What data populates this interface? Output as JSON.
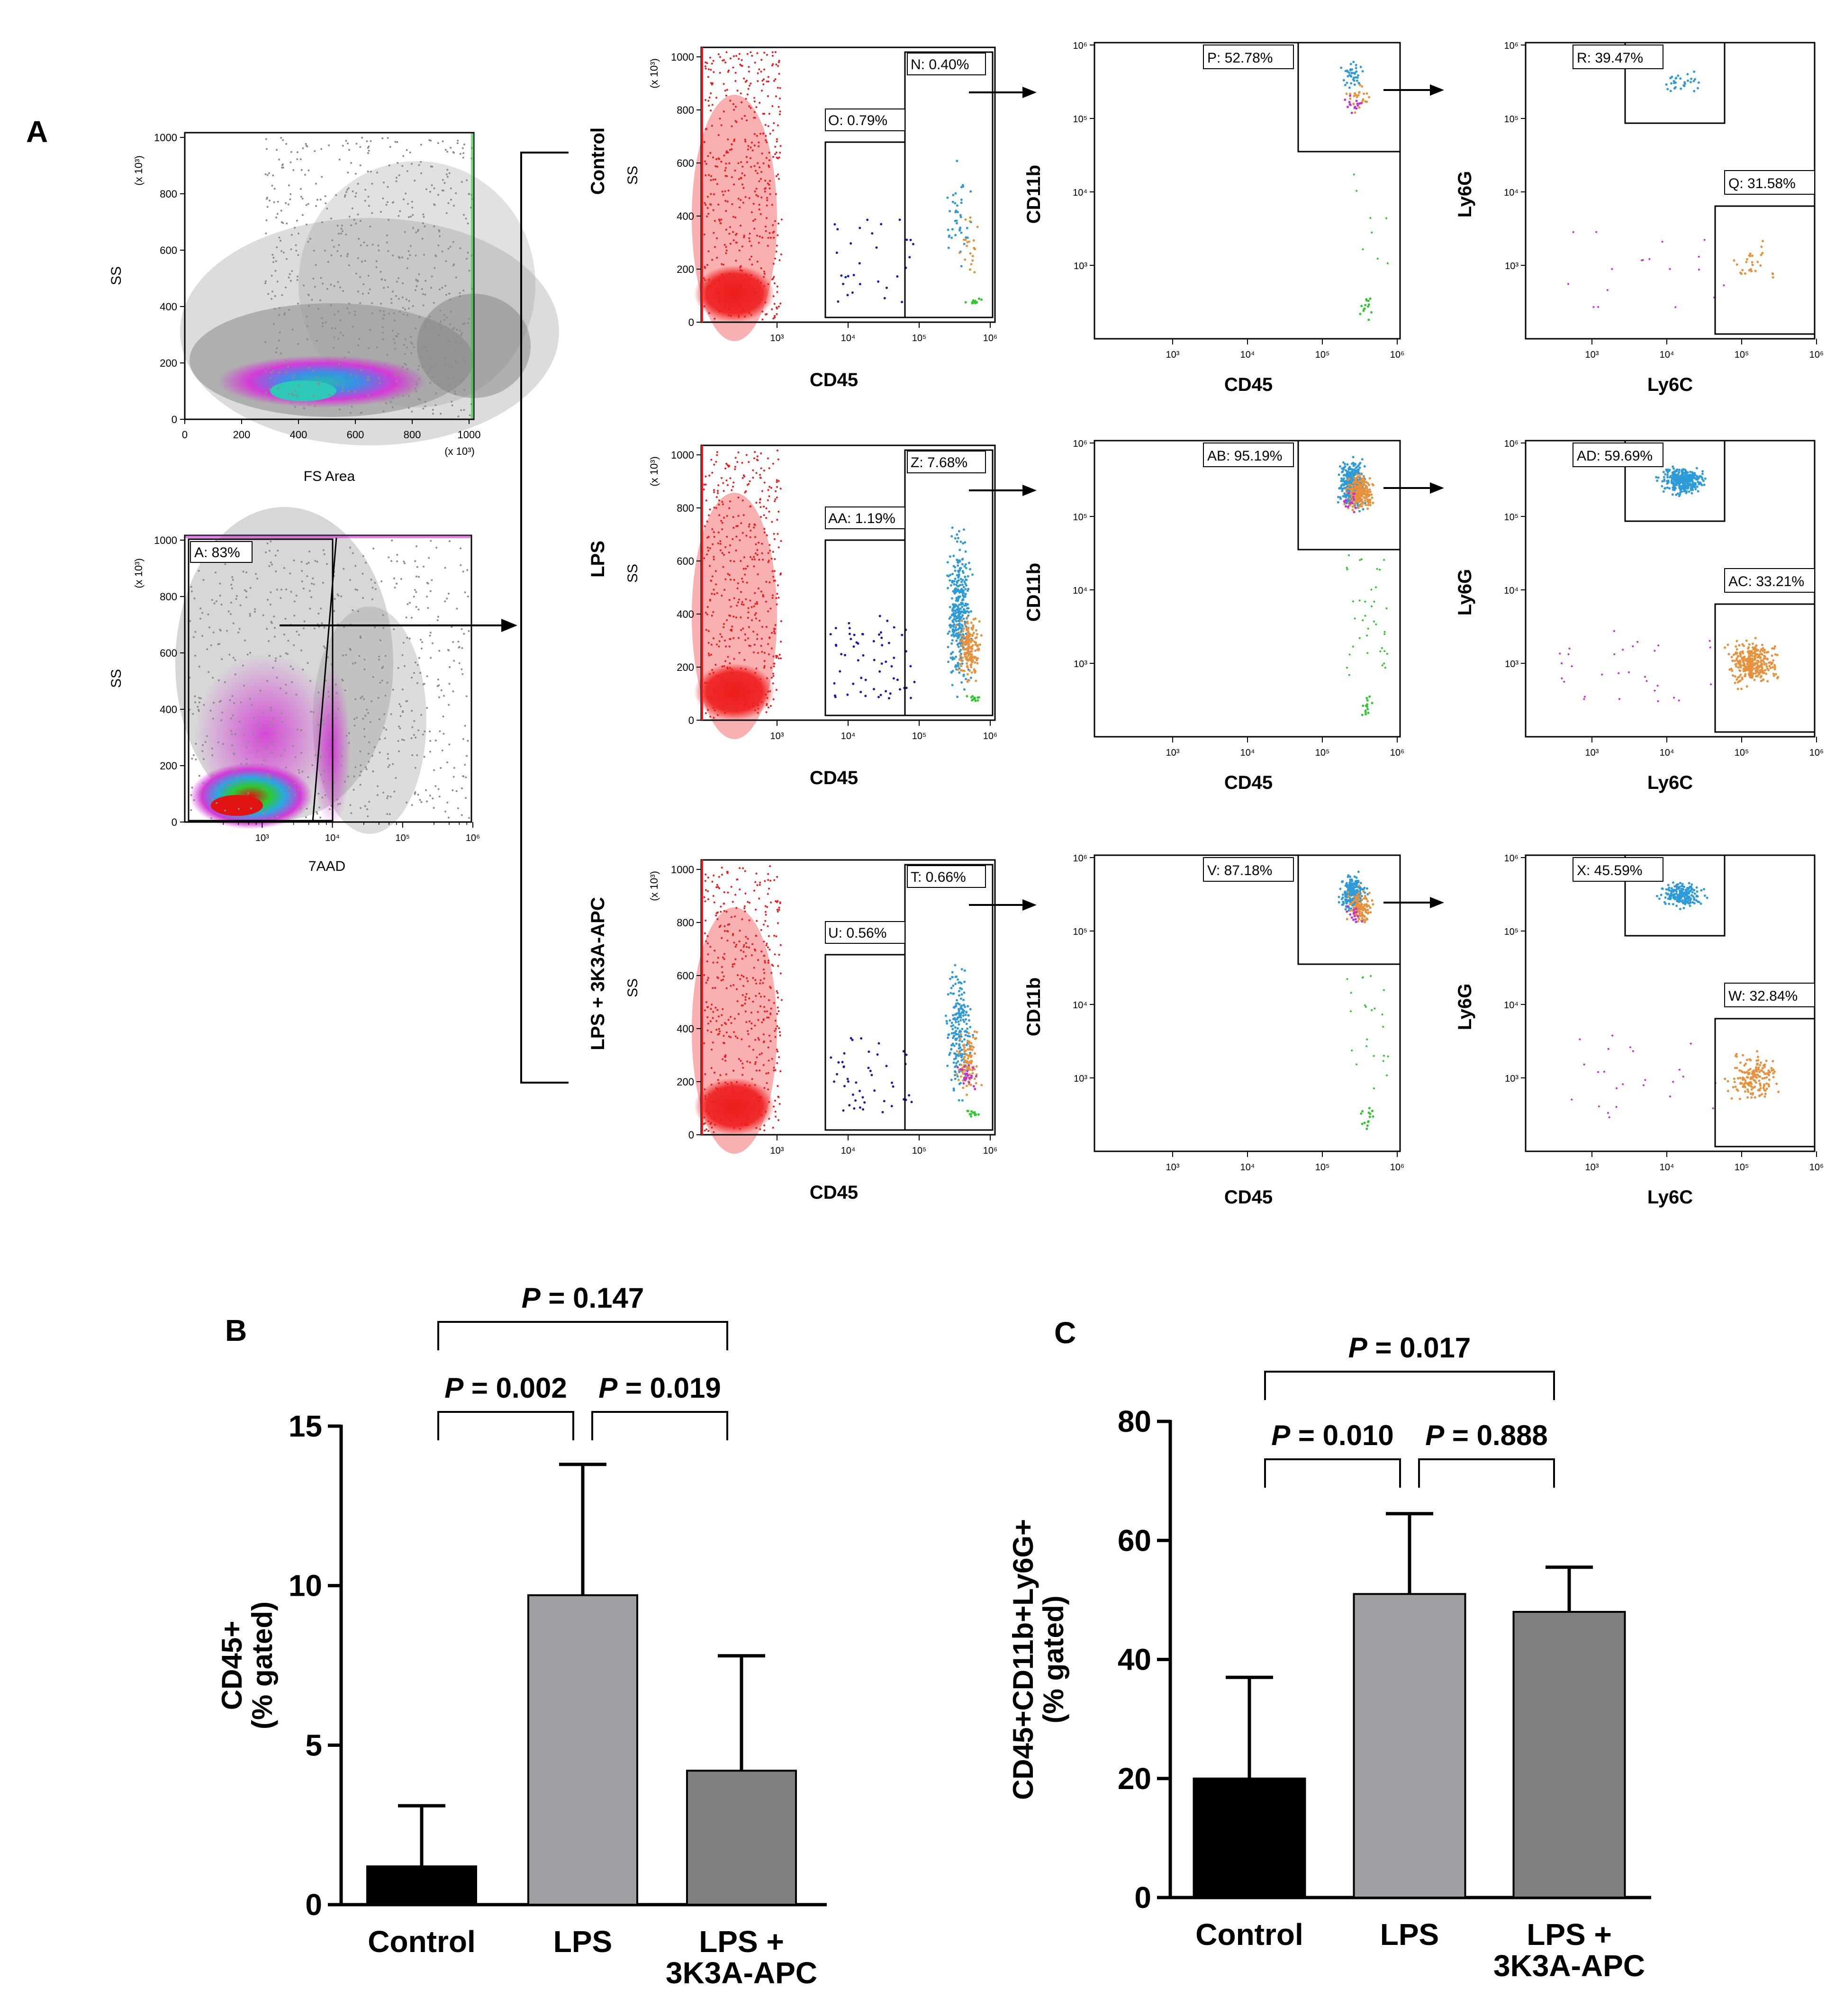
{
  "panel_labels": {
    "a": "A",
    "b": "B",
    "c": "C"
  },
  "gating": {
    "fs_ss": {
      "ylabel": "SS",
      "xlabel": "FS Area",
      "yunit": "(x 10³)",
      "xunit": "(x 10³)",
      "yticks": [
        "0",
        "200",
        "400",
        "600",
        "800",
        "1000"
      ],
      "xticks": [
        "0",
        "200",
        "400",
        "600",
        "800",
        "1000"
      ]
    },
    "aad": {
      "ylabel": "SS",
      "xlabel": "7AAD",
      "yunit": "(x 10³)",
      "yticks": [
        "0",
        "200",
        "400",
        "600",
        "800",
        "1000"
      ],
      "xticks": [
        "10³",
        "10⁴",
        "10⁵",
        "10⁶"
      ],
      "gate": "A: 83%"
    }
  },
  "rows": [
    {
      "condition": "Control",
      "ss_plot": {
        "ylabel": "SS",
        "xlabel": "CD45",
        "gates": [
          "N: 0.40%",
          "O: 0.79%"
        ]
      },
      "cd11b_plot": {
        "ylabel": "CD11b",
        "xlabel": "CD45",
        "gate": "P: 52.78%"
      },
      "ly6_plot": {
        "ylabel": "Ly6G",
        "xlabel": "Ly6C",
        "gates": [
          "R: 39.47%",
          "Q: 31.58%"
        ]
      }
    },
    {
      "condition": "LPS",
      "ss_plot": {
        "ylabel": "SS",
        "xlabel": "CD45",
        "gates": [
          "Z: 7.68%",
          "AA: 1.19%"
        ]
      },
      "cd11b_plot": {
        "ylabel": "CD11b",
        "xlabel": "CD45",
        "gate": "AB: 95.19%"
      },
      "ly6_plot": {
        "ylabel": "Ly6G",
        "xlabel": "Ly6C",
        "gates": [
          "AD: 59.69%",
          "AC: 33.21%"
        ]
      }
    },
    {
      "condition": "LPS + 3K3A-APC",
      "ss_plot": {
        "ylabel": "SS",
        "xlabel": "CD45",
        "gates": [
          "T: 0.66%",
          "U: 0.56%"
        ]
      },
      "cd11b_plot": {
        "ylabel": "CD11b",
        "xlabel": "CD45",
        "gate": "V: 87.18%"
      },
      "ly6_plot": {
        "ylabel": "Ly6G",
        "xlabel": "Ly6C",
        "gates": [
          "X: 45.59%",
          "W: 32.84%"
        ]
      }
    }
  ],
  "flow_axis": {
    "ss_unit": "(x 10³)",
    "ss_ticks": [
      "0",
      "200",
      "400",
      "600",
      "800",
      "1000"
    ],
    "log_ticks": [
      "10³",
      "10⁴",
      "10⁵",
      "10⁶"
    ]
  },
  "colors": {
    "control_bar": "#000000",
    "lps_bar": "#a0a0a4",
    "apc_bar": "#7f7f7f",
    "gate_red": "#ee1c1c",
    "gate_blue": "#1a1aaa",
    "gate_cyan": "#2d9bd8",
    "gate_orange": "#e8913a",
    "gate_green": "#2ec82e",
    "gate_magenta": "#c62fd6"
  },
  "chart_data": [
    {
      "type": "bar",
      "panel": "B",
      "categories": [
        "Control",
        "LPS",
        "LPS + 3K3A-APC"
      ],
      "category_lines": [
        [
          "Control"
        ],
        [
          "LPS"
        ],
        [
          "LPS +",
          "3K3A-APC"
        ]
      ],
      "values": [
        1.2,
        9.7,
        4.2
      ],
      "errors": [
        1.9,
        4.1,
        3.6
      ],
      "ylabel_lines": [
        "CD45+",
        "(% gated)"
      ],
      "ylim": [
        0,
        15
      ],
      "yticks": [
        0,
        5,
        10,
        15
      ],
      "comparisons": [
        {
          "from": 0,
          "to": 1,
          "prefix": "P",
          "text": " = 0.002"
        },
        {
          "from": 1,
          "to": 2,
          "prefix": "P",
          "text": " = 0.019"
        },
        {
          "from": 0,
          "to": 2,
          "prefix": "P",
          "text": " = 0.147"
        }
      ]
    },
    {
      "type": "bar",
      "panel": "C",
      "categories": [
        "Control",
        "LPS",
        "LPS + 3K3A-APC"
      ],
      "category_lines": [
        [
          "Control"
        ],
        [
          "LPS"
        ],
        [
          "LPS +",
          "3K3A-APC"
        ]
      ],
      "values": [
        20.0,
        51.0,
        48.0
      ],
      "errors": [
        17.0,
        13.5,
        7.5
      ],
      "ylabel_lines": [
        "CD45+CD11b+Ly6G+",
        "(% gated)"
      ],
      "ylim": [
        0,
        80
      ],
      "yticks": [
        0,
        20,
        40,
        60,
        80
      ],
      "comparisons": [
        {
          "from": 0,
          "to": 1,
          "prefix": "P",
          "text": " = 0.010"
        },
        {
          "from": 1,
          "to": 2,
          "prefix": "P",
          "text": " = 0.888"
        },
        {
          "from": 0,
          "to": 2,
          "prefix": "P",
          "text": " = 0.017"
        }
      ]
    }
  ]
}
